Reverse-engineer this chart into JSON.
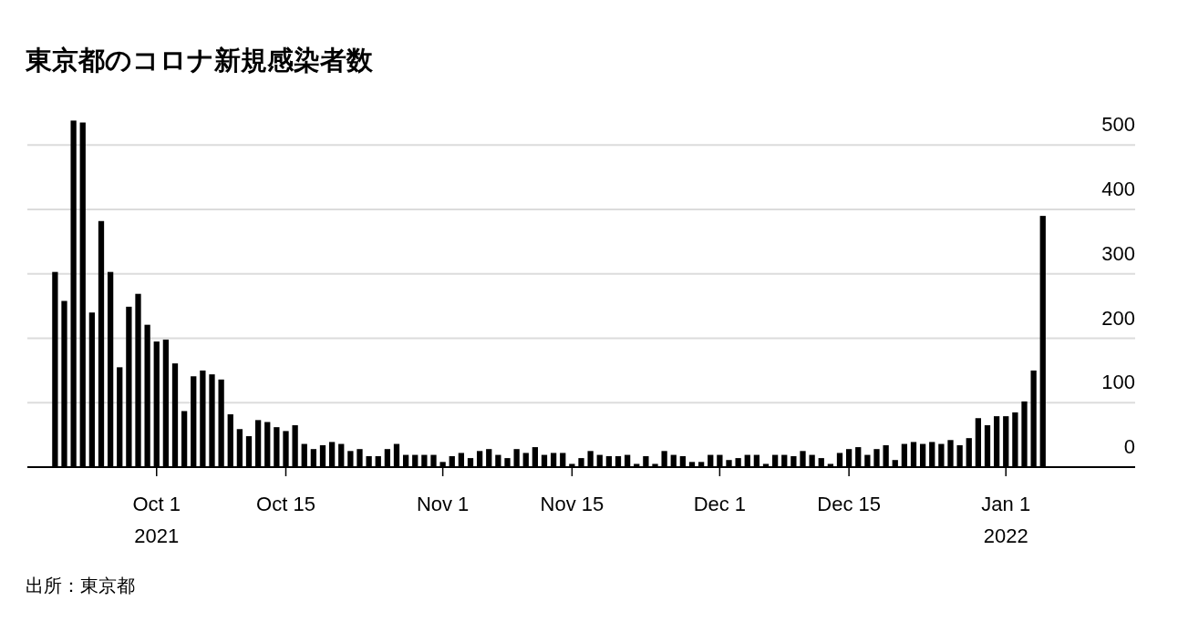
{
  "chart_data": {
    "type": "bar",
    "title": "東京都のコロナ新規感染者数",
    "annotations": [
      "出所：東京都"
    ],
    "x": [
      "2021-09-20",
      "2021-09-21",
      "2021-09-22",
      "2021-09-23",
      "2021-09-24",
      "2021-09-25",
      "2021-09-26",
      "2021-09-27",
      "2021-09-28",
      "2021-09-29",
      "2021-09-30",
      "2021-10-01",
      "2021-10-02",
      "2021-10-03",
      "2021-10-04",
      "2021-10-05",
      "2021-10-06",
      "2021-10-07",
      "2021-10-08",
      "2021-10-09",
      "2021-10-10",
      "2021-10-11",
      "2021-10-12",
      "2021-10-13",
      "2021-10-14",
      "2021-10-15",
      "2021-10-16",
      "2021-10-17",
      "2021-10-18",
      "2021-10-19",
      "2021-10-20",
      "2021-10-21",
      "2021-10-22",
      "2021-10-23",
      "2021-10-24",
      "2021-10-25",
      "2021-10-26",
      "2021-10-27",
      "2021-10-28",
      "2021-10-29",
      "2021-10-30",
      "2021-10-31",
      "2021-11-01",
      "2021-11-02",
      "2021-11-03",
      "2021-11-04",
      "2021-11-05",
      "2021-11-06",
      "2021-11-07",
      "2021-11-08",
      "2021-11-09",
      "2021-11-10",
      "2021-11-11",
      "2021-11-12",
      "2021-11-13",
      "2021-11-14",
      "2021-11-15",
      "2021-11-16",
      "2021-11-17",
      "2021-11-18",
      "2021-11-19",
      "2021-11-20",
      "2021-11-21",
      "2021-11-22",
      "2021-11-23",
      "2021-11-24",
      "2021-11-25",
      "2021-11-26",
      "2021-11-27",
      "2021-11-28",
      "2021-11-29",
      "2021-11-30",
      "2021-12-01",
      "2021-12-02",
      "2021-12-03",
      "2021-12-04",
      "2021-12-05",
      "2021-12-06",
      "2021-12-07",
      "2021-12-08",
      "2021-12-09",
      "2021-12-10",
      "2021-12-11",
      "2021-12-12",
      "2021-12-13",
      "2021-12-14",
      "2021-12-15",
      "2021-12-16",
      "2021-12-17",
      "2021-12-18",
      "2021-12-19",
      "2021-12-20",
      "2021-12-21",
      "2021-12-22",
      "2021-12-23",
      "2021-12-24",
      "2021-12-25",
      "2021-12-26",
      "2021-12-27",
      "2021-12-28",
      "2021-12-29",
      "2021-12-30",
      "2021-12-31",
      "2022-01-01",
      "2022-01-02",
      "2022-01-03",
      "2022-01-04",
      "2022-01-05"
    ],
    "values": [
      303,
      258,
      538,
      535,
      240,
      382,
      303,
      155,
      249,
      269,
      221,
      195,
      198,
      161,
      87,
      141,
      150,
      144,
      136,
      82,
      59,
      48,
      73,
      70,
      62,
      56,
      65,
      36,
      28,
      34,
      39,
      36,
      25,
      28,
      17,
      17,
      28,
      36,
      19,
      19,
      19,
      19,
      8,
      17,
      22,
      14,
      25,
      28,
      19,
      14,
      28,
      22,
      31,
      19,
      22,
      22,
      5,
      14,
      25,
      19,
      17,
      17,
      19,
      5,
      17,
      5,
      25,
      19,
      17,
      8,
      8,
      19,
      19,
      11,
      14,
      19,
      19,
      5,
      19,
      19,
      17,
      25,
      19,
      14,
      5,
      22,
      28,
      31,
      19,
      28,
      34,
      11,
      36,
      39,
      36,
      39,
      36,
      42,
      34,
      45,
      76,
      65,
      79,
      79,
      85,
      102,
      150,
      390
    ],
    "color": "#000000",
    "xlim": [
      "2021-09-17",
      "2022-01-15"
    ],
    "xticks": [
      {
        "value": "2021-10-01",
        "label": "Oct 1\n2021"
      },
      {
        "value": "2021-10-15",
        "label": "Oct 15"
      },
      {
        "value": "2021-11-01",
        "label": "Nov 1"
      },
      {
        "value": "2021-11-15",
        "label": "Nov 15"
      },
      {
        "value": "2021-12-01",
        "label": "Dec 1"
      },
      {
        "value": "2021-12-15",
        "label": "Dec 15"
      },
      {
        "value": "2022-01-01",
        "label": "Jan 1\n2022"
      }
    ],
    "ylim": [
      0,
      540
    ],
    "yticks": [
      0,
      100,
      200,
      300,
      400,
      500
    ],
    "grid": "y"
  }
}
